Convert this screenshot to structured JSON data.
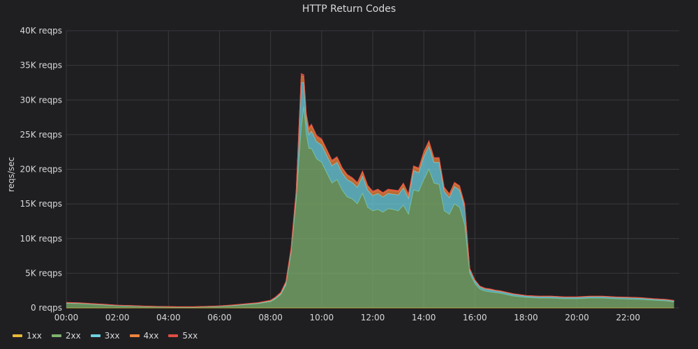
{
  "chart_data": {
    "type": "area",
    "stacked": true,
    "title": "HTTP Return Codes",
    "ylabel": "reqs/sec",
    "xlabel": "",
    "ylim": [
      0,
      40000
    ],
    "xlim": [
      0,
      24
    ],
    "y_ticks": [
      0,
      5000,
      10000,
      15000,
      20000,
      25000,
      30000,
      35000,
      40000
    ],
    "y_tick_labels": [
      "0 reqps",
      "5K reqps",
      "10K reqps",
      "15K reqps",
      "20K reqps",
      "25K reqps",
      "30K reqps",
      "35K reqps",
      "40K reqps"
    ],
    "x_ticks": [
      0,
      2,
      4,
      6,
      8,
      10,
      12,
      14,
      16,
      18,
      20,
      22
    ],
    "x_tick_labels": [
      "00:00",
      "02:00",
      "04:00",
      "06:00",
      "08:00",
      "10:00",
      "12:00",
      "14:00",
      "16:00",
      "18:00",
      "20:00",
      "22:00"
    ],
    "grid": true,
    "legend_position": "bottom-left",
    "x": [
      0,
      0.5,
      1,
      1.5,
      2,
      2.5,
      3,
      3.5,
      4,
      4.5,
      5,
      5.5,
      6,
      6.5,
      7,
      7.5,
      8,
      8.2,
      8.4,
      8.6,
      8.8,
      9.0,
      9.2,
      9.3,
      9.4,
      9.5,
      9.6,
      9.8,
      10.0,
      10.2,
      10.4,
      10.6,
      10.8,
      11.0,
      11.2,
      11.4,
      11.6,
      11.8,
      12.0,
      12.2,
      12.4,
      12.6,
      12.8,
      13.0,
      13.2,
      13.4,
      13.6,
      13.8,
      14.0,
      14.2,
      14.4,
      14.6,
      14.8,
      15.0,
      15.2,
      15.4,
      15.6,
      15.8,
      16.0,
      16.2,
      16.4,
      16.6,
      16.8,
      17.0,
      17.5,
      18,
      18.5,
      19,
      19.5,
      20,
      20.5,
      21,
      21.5,
      22,
      22.5,
      23,
      23.5,
      23.8
    ],
    "series": [
      {
        "name": "1xx",
        "color": "#eab839",
        "values": [
          0,
          0,
          0,
          0,
          0,
          0,
          0,
          0,
          0,
          0,
          0,
          0,
          0,
          0,
          0,
          0,
          0,
          0,
          0,
          0,
          0,
          0,
          0,
          0,
          0,
          0,
          0,
          0,
          0,
          0,
          0,
          0,
          0,
          0,
          0,
          0,
          0,
          0,
          0,
          0,
          0,
          0,
          0,
          0,
          0,
          0,
          0,
          0,
          0,
          0,
          0,
          0,
          0,
          0,
          0,
          0,
          0,
          0,
          0,
          0,
          0,
          0,
          0,
          0,
          0,
          0,
          0,
          0,
          0,
          0,
          0,
          0,
          0,
          0,
          0,
          0,
          0,
          0
        ]
      },
      {
        "name": "2xx",
        "color": "#7eb26d",
        "values": [
          650,
          600,
          500,
          400,
          300,
          250,
          200,
          150,
          120,
          100,
          100,
          150,
          200,
          300,
          450,
          600,
          900,
          1300,
          1900,
          3300,
          7800,
          15500,
          26000,
          29000,
          25000,
          23000,
          23000,
          21500,
          21000,
          19500,
          18000,
          18500,
          17000,
          16000,
          15700,
          15000,
          16500,
          14500,
          14000,
          14200,
          13800,
          14300,
          14200,
          14000,
          14800,
          13500,
          17000,
          16800,
          18500,
          20000,
          18000,
          17800,
          14000,
          13500,
          15000,
          14500,
          12000,
          5000,
          3500,
          2700,
          2400,
          2300,
          2200,
          2100,
          1700,
          1500,
          1400,
          1400,
          1300,
          1300,
          1400,
          1400,
          1300,
          1250,
          1200,
          1100,
          1000,
          850
        ]
      },
      {
        "name": "3xx",
        "color": "#6ed0e0",
        "values": [
          50,
          50,
          40,
          40,
          30,
          30,
          20,
          20,
          20,
          20,
          20,
          20,
          30,
          40,
          50,
          60,
          80,
          120,
          150,
          250,
          400,
          800,
          6500,
          3500,
          2000,
          2000,
          2500,
          2500,
          2500,
          2500,
          2500,
          2500,
          2500,
          2500,
          2400,
          2400,
          2500,
          2500,
          2200,
          2300,
          2200,
          2200,
          2200,
          2300,
          2500,
          2300,
          2800,
          2700,
          3300,
          3300,
          3000,
          3200,
          2800,
          2400,
          2500,
          2500,
          2500,
          500,
          400,
          300,
          300,
          300,
          250,
          250,
          250,
          200,
          200,
          200,
          200,
          200,
          200,
          200,
          200,
          200,
          200,
          150,
          150,
          150
        ]
      },
      {
        "name": "4xx",
        "color": "#ef843c",
        "values": [
          60,
          60,
          50,
          50,
          40,
          40,
          30,
          30,
          30,
          30,
          30,
          30,
          40,
          50,
          60,
          70,
          90,
          120,
          150,
          200,
          300,
          500,
          1000,
          900,
          800,
          800,
          800,
          700,
          700,
          700,
          650,
          650,
          600,
          600,
          550,
          550,
          600,
          550,
          500,
          500,
          500,
          500,
          500,
          500,
          550,
          500,
          550,
          550,
          600,
          650,
          550,
          550,
          500,
          450,
          500,
          500,
          400,
          150,
          120,
          100,
          100,
          100,
          90,
          90,
          80,
          70,
          70,
          70,
          60,
          60,
          60,
          60,
          60,
          60,
          50,
          50,
          50,
          50
        ]
      },
      {
        "name": "5xx",
        "color": "#e24d42",
        "values": [
          20,
          20,
          20,
          20,
          10,
          10,
          10,
          10,
          10,
          10,
          10,
          10,
          10,
          20,
          20,
          20,
          30,
          40,
          50,
          60,
          80,
          150,
          300,
          250,
          200,
          200,
          200,
          200,
          180,
          170,
          160,
          160,
          150,
          150,
          140,
          140,
          150,
          140,
          130,
          130,
          130,
          130,
          130,
          130,
          140,
          130,
          140,
          140,
          150,
          160,
          140,
          140,
          120,
          110,
          120,
          120,
          100,
          40,
          30,
          30,
          30,
          30,
          20,
          20,
          20,
          20,
          20,
          20,
          20,
          20,
          20,
          20,
          20,
          20,
          20,
          20,
          20,
          20
        ]
      }
    ]
  }
}
